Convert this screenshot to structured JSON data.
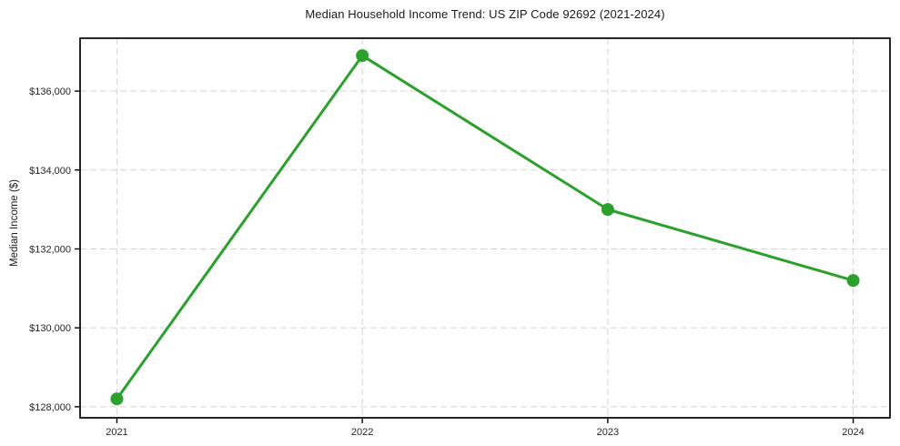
{
  "chart_data": {
    "type": "line",
    "title": "Median Household Income Trend: US ZIP Code 92692 (2021-2024)",
    "xlabel": "",
    "ylabel": "Median Income ($)",
    "x": [
      2021,
      2022,
      2023,
      2024
    ],
    "xtick_labels": [
      "2021",
      "2022",
      "2023",
      "2024"
    ],
    "series": [
      {
        "name": "Median Household Income",
        "values": [
          128200,
          136900,
          133000,
          131200
        ],
        "color": "#2ca02c",
        "marker": "circle",
        "marker_radius": 7,
        "line_width": 3
      }
    ],
    "yticks": [
      128000,
      130000,
      132000,
      134000,
      136000
    ],
    "ytick_labels": [
      "$128,000",
      "$130,000",
      "$132,000",
      "$134,000",
      "$136,000"
    ],
    "xlim": [
      2020.85,
      2024.15
    ],
    "ylim": [
      127720,
      137340
    ],
    "grid": true,
    "grid_style": "dashed",
    "legend": false,
    "colors": {
      "line": "#2ca02c",
      "grid": "#d3d3d3",
      "axis": "#000000",
      "tick_text": "#262626",
      "background": "#ffffff"
    }
  }
}
